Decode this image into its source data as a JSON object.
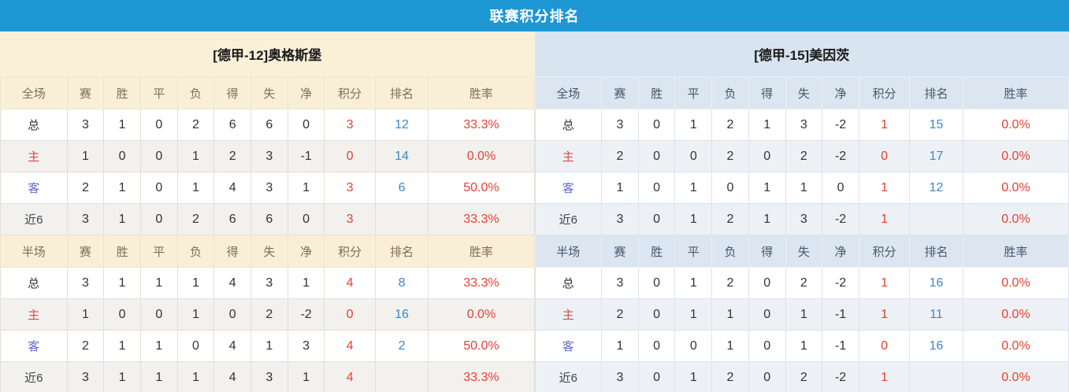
{
  "title": "联赛积分排名",
  "colors": {
    "titlebar_bg": "#1d97d4",
    "accent_red": "#e8402f",
    "rank_blue": "#3e87c8",
    "home_label_red": "#e0484d",
    "away_label_purple": "#6569d2",
    "left_theme_bg": "#f9efd6",
    "right_theme_bg": "#dce6f0"
  },
  "columns": {
    "full_section_label": "全场",
    "half_section_label": "半场",
    "stats": [
      "赛",
      "胜",
      "平",
      "负",
      "得",
      "失",
      "净",
      "积分",
      "排名",
      "胜率"
    ]
  },
  "teams": [
    {
      "name": "[德甲-12]奥格斯堡",
      "theme": "cream",
      "full_rows": [
        {
          "label": "总",
          "type": "total",
          "cells": [
            "3",
            "1",
            "0",
            "2",
            "6",
            "6",
            "0"
          ],
          "points": "3",
          "rank": "12",
          "rate": "33.3%"
        },
        {
          "label": "主",
          "type": "home",
          "cells": [
            "1",
            "0",
            "0",
            "1",
            "2",
            "3",
            "-1"
          ],
          "points": "0",
          "rank": "14",
          "rate": "0.0%"
        },
        {
          "label": "客",
          "type": "away",
          "cells": [
            "2",
            "1",
            "0",
            "1",
            "4",
            "3",
            "1"
          ],
          "points": "3",
          "rank": "6",
          "rate": "50.0%"
        },
        {
          "label": "近6",
          "type": "near6",
          "cells": [
            "3",
            "1",
            "0",
            "2",
            "6",
            "6",
            "0"
          ],
          "points": "3",
          "rank": "",
          "rate": "33.3%"
        }
      ],
      "half_rows": [
        {
          "label": "总",
          "type": "total",
          "cells": [
            "3",
            "1",
            "1",
            "1",
            "4",
            "3",
            "1"
          ],
          "points": "4",
          "rank": "8",
          "rate": "33.3%"
        },
        {
          "label": "主",
          "type": "home",
          "cells": [
            "1",
            "0",
            "0",
            "1",
            "0",
            "2",
            "-2"
          ],
          "points": "0",
          "rank": "16",
          "rate": "0.0%"
        },
        {
          "label": "客",
          "type": "away",
          "cells": [
            "2",
            "1",
            "1",
            "0",
            "4",
            "1",
            "3"
          ],
          "points": "4",
          "rank": "2",
          "rate": "50.0%"
        },
        {
          "label": "近6",
          "type": "near6",
          "cells": [
            "3",
            "1",
            "1",
            "1",
            "4",
            "3",
            "1"
          ],
          "points": "4",
          "rank": "",
          "rate": "33.3%"
        }
      ]
    },
    {
      "name": "[德甲-15]美因茨",
      "theme": "blue",
      "full_rows": [
        {
          "label": "总",
          "type": "total",
          "cells": [
            "3",
            "0",
            "1",
            "2",
            "1",
            "3",
            "-2"
          ],
          "points": "1",
          "rank": "15",
          "rate": "0.0%"
        },
        {
          "label": "主",
          "type": "home",
          "cells": [
            "2",
            "0",
            "0",
            "2",
            "0",
            "2",
            "-2"
          ],
          "points": "0",
          "rank": "17",
          "rate": "0.0%"
        },
        {
          "label": "客",
          "type": "away",
          "cells": [
            "1",
            "0",
            "1",
            "0",
            "1",
            "1",
            "0"
          ],
          "points": "1",
          "rank": "12",
          "rate": "0.0%"
        },
        {
          "label": "近6",
          "type": "near6",
          "cells": [
            "3",
            "0",
            "1",
            "2",
            "1",
            "3",
            "-2"
          ],
          "points": "1",
          "rank": "",
          "rate": "0.0%"
        }
      ],
      "half_rows": [
        {
          "label": "总",
          "type": "total",
          "cells": [
            "3",
            "0",
            "1",
            "2",
            "0",
            "2",
            "-2"
          ],
          "points": "1",
          "rank": "16",
          "rate": "0.0%"
        },
        {
          "label": "主",
          "type": "home",
          "cells": [
            "2",
            "0",
            "1",
            "1",
            "0",
            "1",
            "-1"
          ],
          "points": "1",
          "rank": "11",
          "rate": "0.0%"
        },
        {
          "label": "客",
          "type": "away",
          "cells": [
            "1",
            "0",
            "0",
            "1",
            "0",
            "1",
            "-1"
          ],
          "points": "0",
          "rank": "16",
          "rate": "0.0%"
        },
        {
          "label": "近6",
          "type": "near6",
          "cells": [
            "3",
            "0",
            "1",
            "2",
            "0",
            "2",
            "-2"
          ],
          "points": "1",
          "rank": "",
          "rate": "0.0%"
        }
      ]
    }
  ]
}
